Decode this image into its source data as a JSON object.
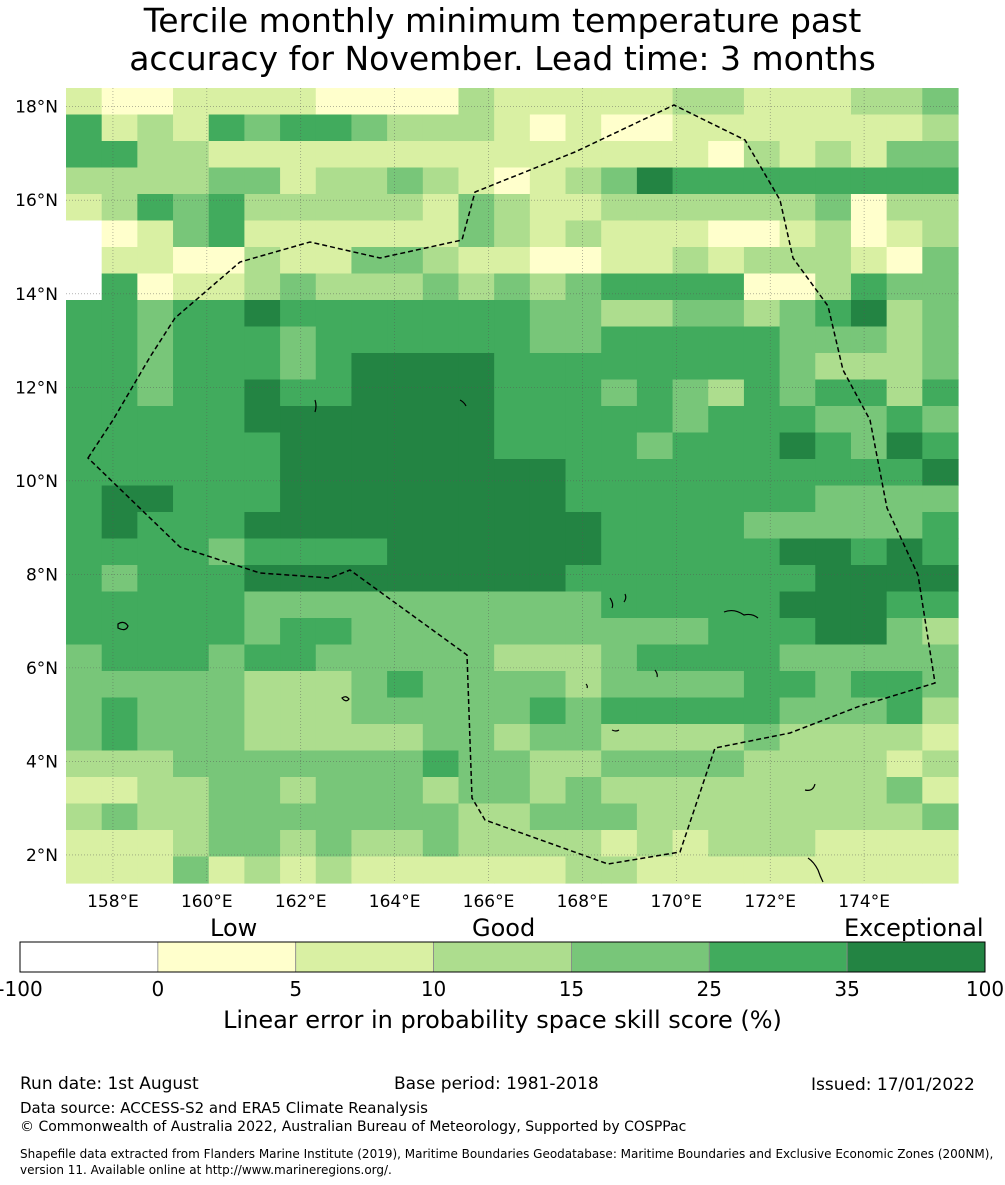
{
  "title_line1": "Tercile monthly minimum temperature past",
  "title_line2": "accuracy for November. Lead time: 3 months",
  "axes": {
    "lon_labels": [
      "158°E",
      "160°E",
      "162°E",
      "164°E",
      "166°E",
      "168°E",
      "170°E",
      "172°E",
      "174°E"
    ],
    "lon_values": [
      158,
      160,
      162,
      164,
      166,
      168,
      170,
      172,
      174
    ],
    "lat_labels": [
      "18°N",
      "16°N",
      "14°N",
      "12°N",
      "10°N",
      "8°N",
      "6°N",
      "4°N",
      "2°N"
    ],
    "lat_values": [
      18,
      16,
      14,
      12,
      10,
      8,
      6,
      4,
      2
    ],
    "lon_range": [
      157,
      176
    ],
    "lat_range": [
      1.4,
      18.4
    ]
  },
  "colorbar": {
    "category_labels": [
      "Low",
      "Good",
      "Exceptional"
    ],
    "tick_labels": [
      "-100",
      "0",
      "5",
      "10",
      "15",
      "25",
      "35",
      "100"
    ],
    "colors": [
      "#ffffff",
      "#ffffcc",
      "#d9f0a3",
      "#addd8e",
      "#78c679",
      "#41ab5d",
      "#238443"
    ],
    "caption": "Linear error in probability space skill score (%)"
  },
  "footer": {
    "run_date": "Run date: 1st August",
    "base_period": "Base period: 1981-2018",
    "issued": "Issued: 17/01/2022",
    "data_source": "Data source: ACCESS-S2 and ERA5 Climate Reanalysis",
    "copyright": "© Commonwealth of Australia 2022, Australian Bureau of Meteorology, Supported by COSPPac",
    "shapefile": "Shapefile data extracted from Flanders Marine Institute (2019), Maritime Boundaries Geodatabase: Maritime Boundaries and Exclusive Economic Zones (200NM), version 11. Available online at http://www.marineregions.org/."
  },
  "grid_colors_legend_index": "0=below 0,1=0-5,2=5-10,3=10-15,4=15-25,5=25-35,6=35-100",
  "skill_grid": [
    "2112222111132222233222334",
    "5232545543332121122222223",
    "5533222222222222221323244",
    "3333442334321234655555555",
    "2354533333243223333334133",
    "0124522222243232221123123",
    "0221132244322112232333214",
    "0512234333434345555113544",
    "5545565555555443344345634",
    "5545554555555445555544434",
    "5545554566665555555543334",
    "5545565566665554543545535",
    "5555566666665555545554454",
    "5555556666665555455565465",
    "5555556666666655555555556",
    "5665556666666655555554444",
    "5655566666666665555444445",
    "5555455556666665555566565",
    "5455566666666655555556666",
    "5555544444444445555566655",
    "5555545544444444445556643",
    "4555455444443334555544444",
    "4444433345444434444554554",
    "4544433344444545555544453",
    "4544433333443443333433332",
    "3334444444544334444333323",
    "2233443444344343333333342",
    "3433444444433444333333334",
    "2223443433433332323332222",
    "2224232322222233222222222"
  ]
}
